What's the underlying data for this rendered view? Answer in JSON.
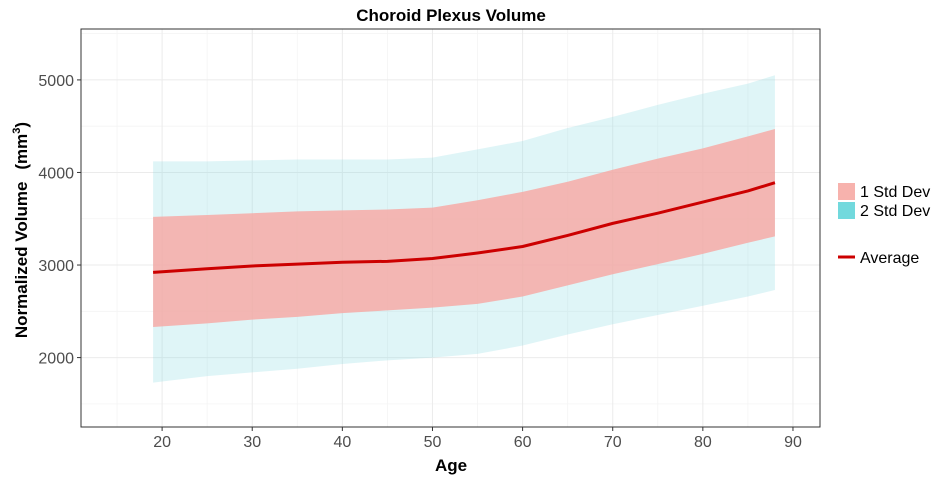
{
  "chart_data": {
    "type": "area",
    "title": "Choroid Plexus Volume",
    "xlabel": "Age",
    "ylabel": "Normalized Volume",
    "ylabel_unit": "(mm",
    "ylabel_unit_sup": "3",
    "ylabel_unit_close": ")",
    "xlim": [
      11,
      93
    ],
    "ylim": [
      1250,
      5550
    ],
    "x_ticks": [
      20,
      30,
      40,
      50,
      60,
      70,
      80,
      90
    ],
    "x_tick_labels": [
      "20",
      "30",
      "40",
      "50",
      "60",
      "70",
      "80",
      "90"
    ],
    "y_ticks": [
      2000,
      3000,
      4000,
      5000
    ],
    "y_tick_labels": [
      "2000",
      "3000",
      "4000",
      "5000"
    ],
    "grid": true,
    "legend_position": "right",
    "x": [
      19,
      25,
      30,
      35,
      40,
      45,
      50,
      55,
      60,
      65,
      70,
      75,
      80,
      85,
      88
    ],
    "series": [
      {
        "name": "2 Std Dev",
        "kind": "band",
        "color": "#7fd9e0",
        "lower": [
          1730,
          1800,
          1840,
          1880,
          1930,
          1970,
          2000,
          2040,
          2130,
          2250,
          2360,
          2460,
          2560,
          2660,
          2730
        ],
        "upper": [
          4120,
          4120,
          4130,
          4140,
          4140,
          4140,
          4160,
          4250,
          4340,
          4480,
          4600,
          4730,
          4850,
          4960,
          5050
        ]
      },
      {
        "name": "1 Std Dev",
        "kind": "band",
        "color": "#f8a6a1",
        "lower": [
          2330,
          2370,
          2410,
          2440,
          2480,
          2510,
          2540,
          2580,
          2660,
          2780,
          2900,
          3010,
          3120,
          3240,
          3310
        ],
        "upper": [
          3520,
          3540,
          3560,
          3580,
          3590,
          3600,
          3620,
          3700,
          3790,
          3900,
          4030,
          4150,
          4260,
          4390,
          4470
        ]
      },
      {
        "name": "Average",
        "kind": "line",
        "color": "#cc0000",
        "values": [
          2920,
          2960,
          2990,
          3010,
          3030,
          3040,
          3070,
          3130,
          3200,
          3320,
          3450,
          3560,
          3680,
          3800,
          3890
        ]
      }
    ]
  }
}
